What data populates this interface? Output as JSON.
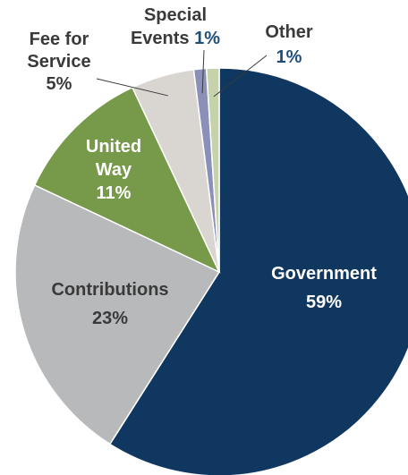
{
  "chart_data": {
    "type": "pie",
    "slices": [
      {
        "label_lines": [
          "Government"
        ],
        "pct_label": "59%",
        "value": 59,
        "color": "#10375f"
      },
      {
        "label_lines": [
          "Contributions"
        ],
        "pct_label": "23%",
        "value": 23,
        "color": "#b7b9bb"
      },
      {
        "label_lines": [
          "United",
          "Way"
        ],
        "pct_label": "11%",
        "value": 11,
        "color": "#76994a"
      },
      {
        "label_lines": [
          "Fee for",
          "Service"
        ],
        "pct_label": "5%",
        "value": 5,
        "color": "#d9d6d2"
      },
      {
        "label_lines": [
          "Special",
          "Events"
        ],
        "pct_label": "1%",
        "value": 1,
        "color": "#8a90b7"
      },
      {
        "label_lines": [
          "Other"
        ],
        "pct_label": "1%",
        "value": 1,
        "color": "#c6d3aa"
      }
    ],
    "start": "12 o'clock",
    "direction": "clockwise",
    "legend": "none"
  },
  "colors": {
    "label_dark": "#3a3a3a",
    "label_light": "#ffffff",
    "pct_accent": "#1f4e79"
  }
}
